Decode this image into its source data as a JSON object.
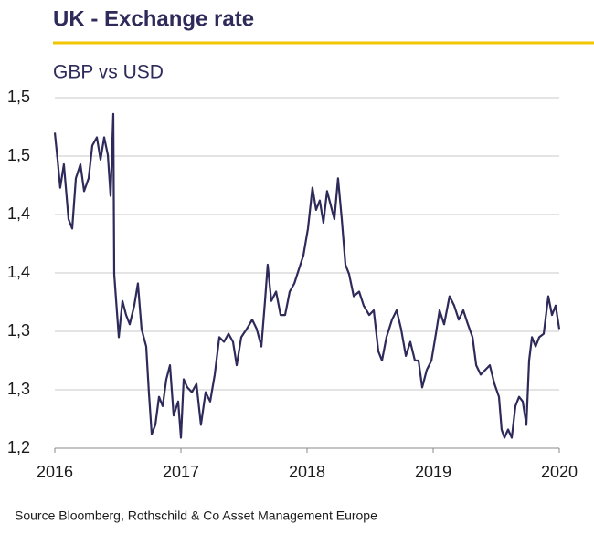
{
  "chart_data": {
    "type": "line",
    "title": "UK - Exchange rate",
    "subtitle": "GBP vs USD",
    "source": "Source Bloomberg, Rothschild & Co Asset Management  Europe",
    "xlim": [
      2016,
      2020
    ],
    "xticks": [
      2016,
      2017,
      2018,
      2019,
      2020
    ],
    "ylim": [
      1.2,
      1.5
    ],
    "yticks": [
      {
        "value": 1.2,
        "label": "1,2"
      },
      {
        "value": 1.25,
        "label": "1,3"
      },
      {
        "value": 1.3,
        "label": "1,3"
      },
      {
        "value": 1.35,
        "label": "1,4"
      },
      {
        "value": 1.4,
        "label": "1,4"
      },
      {
        "value": 1.45,
        "label": "1,5"
      },
      {
        "value": 1.5,
        "label": "1,5"
      }
    ],
    "grid": true,
    "series": [
      {
        "name": "GBP vs USD",
        "color": "#2e2a5a",
        "x": [
          2016.0,
          2016.022,
          2016.043,
          2016.072,
          2016.109,
          2016.138,
          2016.167,
          2016.203,
          2016.232,
          2016.268,
          2016.297,
          2016.333,
          2016.362,
          2016.391,
          2016.42,
          2016.442,
          2016.464,
          2016.471,
          2016.486,
          2016.507,
          2016.536,
          2016.565,
          2016.594,
          2016.63,
          2016.659,
          2016.688,
          2016.725,
          2016.746,
          2016.768,
          2016.797,
          2016.826,
          2016.855,
          2016.884,
          2016.913,
          2016.942,
          2016.978,
          2017.0,
          2017.022,
          2017.051,
          2017.087,
          2017.123,
          2017.159,
          2017.196,
          2017.232,
          2017.268,
          2017.304,
          2017.341,
          2017.377,
          2017.413,
          2017.442,
          2017.478,
          2017.522,
          2017.565,
          2017.601,
          2017.638,
          2017.667,
          2017.688,
          2017.717,
          2017.754,
          2017.79,
          2017.826,
          2017.862,
          2017.899,
          2017.935,
          2017.971,
          2018.007,
          2018.043,
          2018.072,
          2018.101,
          2018.13,
          2018.159,
          2018.188,
          2018.217,
          2018.246,
          2018.275,
          2018.304,
          2018.333,
          2018.37,
          2018.413,
          2018.449,
          2018.493,
          2018.529,
          2018.565,
          2018.594,
          2018.63,
          2018.674,
          2018.71,
          2018.746,
          2018.783,
          2018.819,
          2018.855,
          2018.884,
          2018.913,
          2018.949,
          2018.986,
          2019.022,
          2019.051,
          2019.087,
          2019.13,
          2019.167,
          2019.203,
          2019.239,
          2019.275,
          2019.312,
          2019.341,
          2019.377,
          2019.413,
          2019.449,
          2019.486,
          2019.522,
          2019.543,
          2019.565,
          2019.594,
          2019.623,
          2019.652,
          2019.681,
          2019.71,
          2019.739,
          2019.761,
          2019.783,
          2019.812,
          2019.841,
          2019.877,
          2019.913,
          2019.942,
          2019.971,
          2020.0
        ],
        "values": [
          1.47,
          1.447,
          1.423,
          1.443,
          1.396,
          1.388,
          1.431,
          1.443,
          1.42,
          1.431,
          1.459,
          1.466,
          1.447,
          1.466,
          1.451,
          1.416,
          1.486,
          1.349,
          1.326,
          1.295,
          1.326,
          1.314,
          1.306,
          1.322,
          1.341,
          1.302,
          1.287,
          1.248,
          1.212,
          1.22,
          1.244,
          1.236,
          1.259,
          1.271,
          1.228,
          1.24,
          1.209,
          1.259,
          1.252,
          1.248,
          1.255,
          1.22,
          1.248,
          1.24,
          1.263,
          1.295,
          1.291,
          1.298,
          1.291,
          1.271,
          1.295,
          1.302,
          1.31,
          1.302,
          1.287,
          1.326,
          1.357,
          1.326,
          1.334,
          1.314,
          1.314,
          1.334,
          1.341,
          1.353,
          1.365,
          1.388,
          1.423,
          1.404,
          1.412,
          1.393,
          1.42,
          1.408,
          1.396,
          1.431,
          1.396,
          1.357,
          1.349,
          1.33,
          1.334,
          1.322,
          1.314,
          1.318,
          1.283,
          1.275,
          1.295,
          1.31,
          1.318,
          1.302,
          1.279,
          1.291,
          1.275,
          1.275,
          1.252,
          1.267,
          1.275,
          1.298,
          1.318,
          1.306,
          1.33,
          1.322,
          1.31,
          1.318,
          1.306,
          1.295,
          1.271,
          1.263,
          1.267,
          1.271,
          1.255,
          1.244,
          1.216,
          1.209,
          1.216,
          1.209,
          1.236,
          1.244,
          1.24,
          1.22,
          1.275,
          1.295,
          1.287,
          1.295,
          1.298,
          1.33,
          1.314,
          1.322,
          1.302
        ]
      }
    ]
  }
}
